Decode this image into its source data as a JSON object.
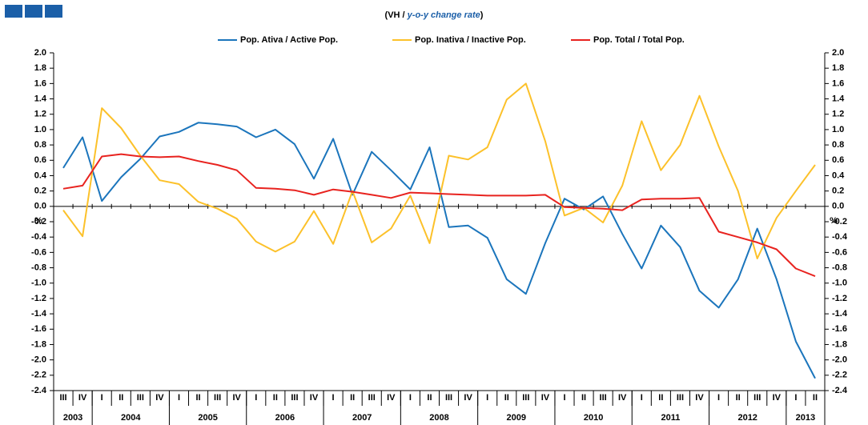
{
  "chart_data": {
    "type": "line",
    "subtitle_parts": [
      "(VH / ",
      "y-o-y change rate",
      ")"
    ],
    "y_label": "%",
    "y2_label": "%",
    "categories": [
      "III",
      "IV",
      "I",
      "II",
      "III",
      "IV",
      "I",
      "II",
      "III",
      "IV",
      "I",
      "II",
      "III",
      "IV",
      "I",
      "II",
      "III",
      "IV",
      "I",
      "II",
      "III",
      "IV",
      "I",
      "II",
      "III",
      "IV",
      "I",
      "II",
      "III",
      "IV",
      "I",
      "II",
      "III",
      "IV",
      "I",
      "II",
      "III",
      "IV",
      "I",
      "II"
    ],
    "years": [
      "2003",
      "2004",
      "2005",
      "2006",
      "2007",
      "2008",
      "2009",
      "2010",
      "2011",
      "2012",
      "2013"
    ],
    "series": [
      {
        "name": "Pop. Ativa / Active Pop.",
        "color": "#1b75bc",
        "values": [
          0.5,
          0.9,
          0.07,
          0.38,
          0.62,
          0.91,
          0.97,
          1.09,
          1.07,
          1.04,
          0.9,
          1.0,
          0.81,
          0.36,
          0.88,
          0.15,
          0.71,
          0.47,
          0.22,
          0.77,
          -0.27,
          -0.25,
          -0.41,
          -0.95,
          -1.14,
          -0.48,
          0.1,
          -0.04,
          0.13,
          -0.36,
          -0.81,
          -0.25,
          -0.53,
          -1.1,
          -1.32,
          -0.95,
          -0.29,
          -0.95,
          -1.76,
          -2.24
        ]
      },
      {
        "name": "Pop. Inativa / Inactive Pop.",
        "color": "#fcc12a",
        "values": [
          -0.05,
          -0.39,
          1.28,
          1.02,
          0.66,
          0.34,
          0.29,
          0.06,
          -0.03,
          -0.16,
          -0.46,
          -0.59,
          -0.46,
          -0.06,
          -0.49,
          0.2,
          -0.47,
          -0.29,
          0.14,
          -0.48,
          0.66,
          0.61,
          0.77,
          1.39,
          1.6,
          0.85,
          -0.12,
          -0.02,
          -0.21,
          0.27,
          1.11,
          0.47,
          0.8,
          1.44,
          0.78,
          0.2,
          -0.68,
          -0.15,
          0.2,
          0.54
        ]
      },
      {
        "name": "Pop. Total / Total Pop.",
        "color": "#e8231f",
        "values": [
          0.23,
          0.27,
          0.65,
          0.68,
          0.65,
          0.64,
          0.65,
          0.59,
          0.54,
          0.47,
          0.24,
          0.23,
          0.21,
          0.15,
          0.22,
          0.19,
          0.15,
          0.11,
          0.18,
          0.17,
          0.16,
          0.15,
          0.14,
          0.14,
          0.14,
          0.15,
          -0.01,
          -0.02,
          -0.03,
          -0.05,
          0.09,
          0.1,
          0.1,
          0.11,
          -0.33,
          -0.4,
          -0.47,
          -0.56,
          -0.81,
          -0.91
        ]
      }
    ],
    "ylim": [
      -2.4,
      2.0
    ],
    "yticks": [
      {
        "value": 2.0,
        "label": "2.0"
      },
      1.8,
      1.6,
      1.4,
      1.2,
      {
        "value": 1.0,
        "label": "1.0"
      },
      0.8,
      0.6,
      0.4,
      0.2,
      {
        "value": 0.0,
        "label": "0.0"
      },
      -0.2,
      -0.4,
      -0.6,
      -0.8,
      {
        "value": -1.0,
        "label": "-1.0"
      },
      -1.2,
      -1.4,
      -1.6,
      -1.8,
      {
        "value": -2.0,
        "label": "-2.0"
      },
      -2.2,
      -2.4
    ],
    "y2lim": [
      -2.4,
      2.0
    ],
    "y2ticks": [
      {
        "value": 2.0,
        "label": "2.0"
      },
      1.8,
      1.6,
      1.4,
      1.2,
      {
        "value": 1.0,
        "label": "1.0"
      },
      0.8,
      0.6,
      0.4,
      0.2,
      {
        "value": 0.0,
        "label": "0.0"
      },
      -0.2,
      -0.4,
      -0.6,
      -0.8,
      {
        "value": -1.0,
        "label": "-1.0"
      },
      -1.2,
      -1.4,
      -1.6,
      -1.8,
      {
        "value": -2.0,
        "label": "-2.0"
      },
      -2.2,
      -2.4
    ],
    "grid": false
  }
}
